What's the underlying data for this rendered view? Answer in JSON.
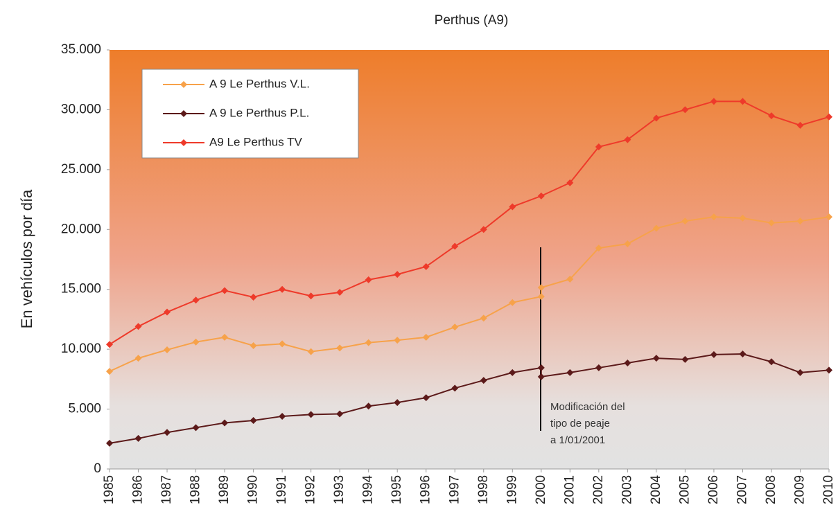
{
  "chart_data": {
    "type": "line",
    "title": "Perthus (A9)",
    "ylabel": "En vehículos por día",
    "annotation": [
      "Modificación del",
      "tipo de peaje",
      "a 1/01/2001"
    ],
    "xlim": [
      1985,
      2010
    ],
    "xticks": [
      1985,
      1986,
      1987,
      1988,
      1989,
      1990,
      1991,
      1992,
      1993,
      1994,
      1995,
      1996,
      1997,
      1998,
      1999,
      2000,
      2001,
      2002,
      2003,
      2004,
      2005,
      2006,
      2007,
      2008,
      2009,
      2010
    ],
    "ylim": [
      0,
      35000
    ],
    "yticks": [
      0,
      {
        "value": 5000,
        "label": "5.000"
      },
      {
        "value": 10000,
        "label": "10.000"
      },
      {
        "value": 15000,
        "label": "15.000"
      },
      {
        "value": 20000,
        "label": "20.000"
      },
      {
        "value": 25000,
        "label": "25.000"
      },
      {
        "value": 30000,
        "label": "30.000"
      },
      {
        "value": 35000,
        "label": "35.000"
      }
    ],
    "series": [
      {
        "name": "A 9 Le Perthus V.L.",
        "color": "#f7a24a",
        "x": [
          1985,
          1986,
          1987,
          1988,
          1989,
          1990,
          1991,
          1992,
          1993,
          1994,
          1995,
          1996,
          1997,
          1998,
          1999,
          2000,
          2000,
          2001,
          2002,
          2003,
          2004,
          2005,
          2006,
          2007,
          2008,
          2009,
          2010
        ],
        "values": [
          8150,
          9250,
          9950,
          10600,
          11000,
          10300,
          10450,
          9800,
          10100,
          10550,
          10750,
          11000,
          11850,
          12600,
          13900,
          14400,
          15150,
          15850,
          18450,
          18800,
          20100,
          20700,
          21050,
          20950,
          20550,
          20700,
          21050
        ]
      },
      {
        "name": "A 9 Le Perthus P.L.",
        "color": "#5c1a1a",
        "x": [
          1985,
          1986,
          1987,
          1988,
          1989,
          1990,
          1991,
          1992,
          1993,
          1994,
          1995,
          1996,
          1997,
          1998,
          1999,
          2000,
          2000,
          2001,
          2002,
          2003,
          2004,
          2005,
          2006,
          2007,
          2008,
          2009,
          2010
        ],
        "values": [
          2150,
          2550,
          3050,
          3450,
          3850,
          4050,
          4400,
          4550,
          4600,
          5250,
          5550,
          5950,
          6750,
          7400,
          8050,
          8450,
          7700,
          8050,
          8450,
          8850,
          9250,
          9150,
          9550,
          9600,
          8950,
          8050,
          8250
        ]
      },
      {
        "name": "A9 Le Perthus TV",
        "color": "#ee3a2a",
        "x": [
          1985,
          1986,
          1987,
          1988,
          1989,
          1990,
          1991,
          1992,
          1993,
          1994,
          1995,
          1996,
          1997,
          1998,
          1999,
          2000,
          2001,
          2002,
          2003,
          2004,
          2005,
          2006,
          2007,
          2008,
          2009,
          2010
        ],
        "values": [
          10400,
          11900,
          13100,
          14100,
          14900,
          14350,
          15000,
          14450,
          14750,
          15800,
          16250,
          16900,
          18600,
          20000,
          21900,
          22800,
          23900,
          26900,
          27500,
          29300,
          30000,
          30700,
          30700,
          29500,
          28700,
          29400
        ]
      }
    ]
  }
}
